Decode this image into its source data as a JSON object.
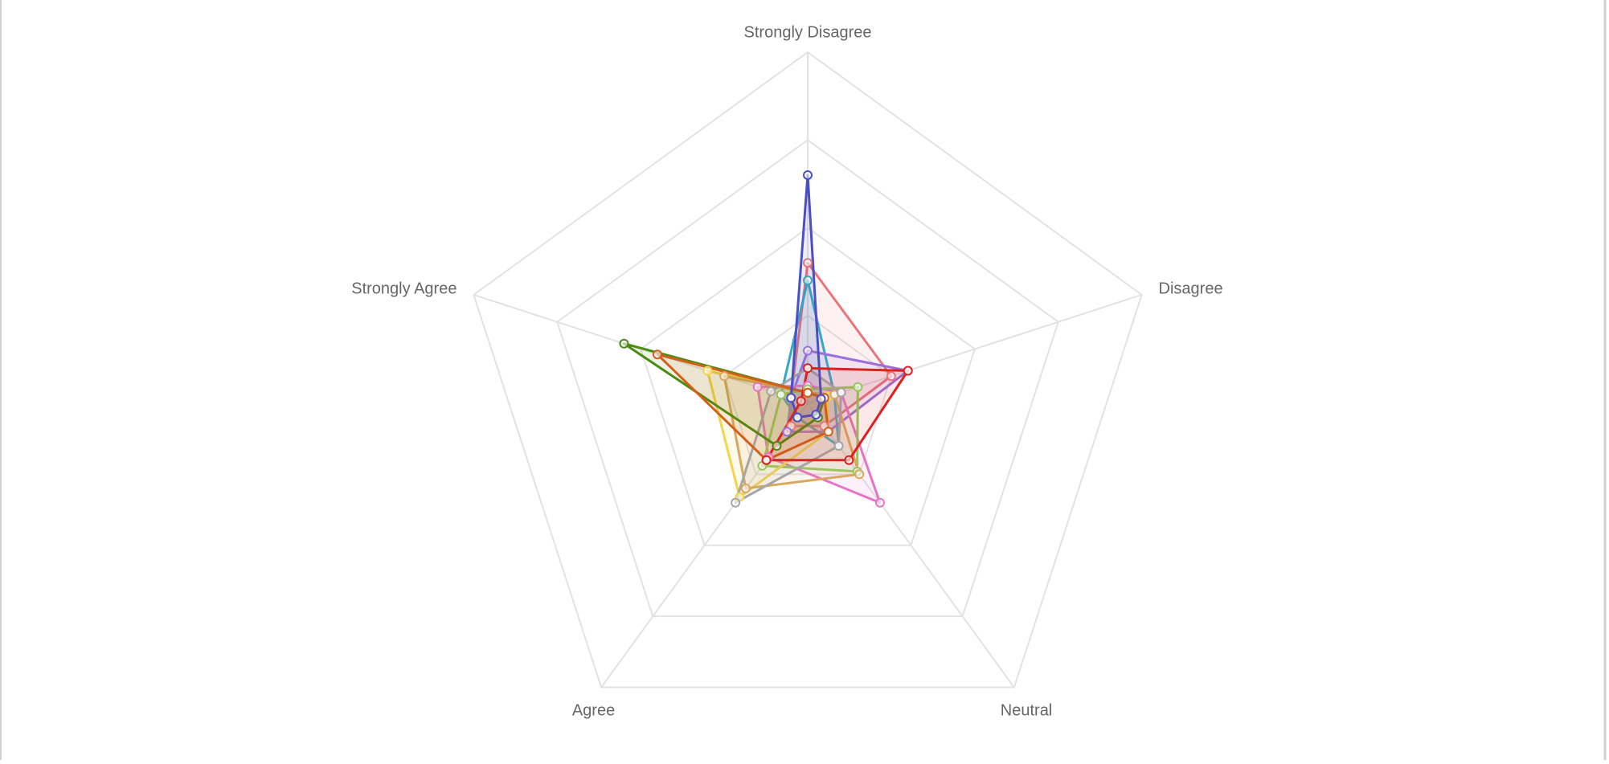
{
  "chart_data": {
    "type": "radar",
    "categories": [
      "Strongly Disagree",
      "Disagree",
      "Neutral",
      "Agree",
      "Strongly Agree"
    ],
    "rlim": [
      0,
      100
    ],
    "rticks": [
      25,
      50,
      75,
      100
    ],
    "grid": true,
    "series": [
      {
        "color": "#e8757a",
        "values": [
          40,
          25,
          8,
          8,
          5
        ]
      },
      {
        "color": "#35a9c4",
        "values": [
          35,
          8,
          15,
          5,
          8
        ]
      },
      {
        "color": "#9b6fdc",
        "values": [
          15,
          30,
          10,
          10,
          5
        ]
      },
      {
        "color": "#e673c8",
        "values": [
          5,
          10,
          35,
          19,
          15
        ]
      },
      {
        "color": "#96c85a",
        "values": [
          4,
          15,
          24,
          22,
          8
        ]
      },
      {
        "color": "#f2d548",
        "values": [
          3,
          6,
          10,
          33,
          30
        ]
      },
      {
        "color": "#d9a75e",
        "values": [
          3,
          8,
          25,
          30,
          25
        ]
      },
      {
        "color": "#a6a6a6",
        "values": [
          10,
          10,
          15,
          35,
          11
        ]
      },
      {
        "color": "#4a8b12",
        "values": [
          3,
          5,
          5,
          15,
          55
        ]
      },
      {
        "color": "#d35f18",
        "values": [
          3,
          5,
          10,
          20,
          45
        ]
      },
      {
        "color": "#4b4fc6",
        "values": [
          65,
          4,
          4,
          5,
          5
        ]
      },
      {
        "color": "#dd2020",
        "values": [
          10,
          30,
          20,
          20,
          2
        ]
      }
    ]
  }
}
